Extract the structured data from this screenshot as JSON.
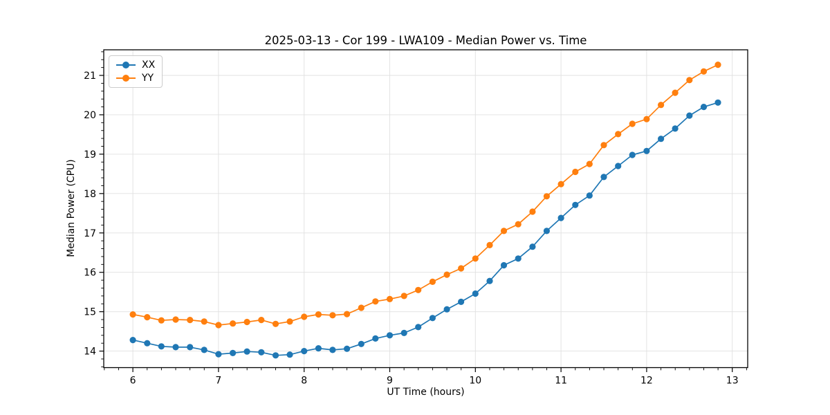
{
  "chart_data": {
    "type": "line",
    "title": "2025-03-13 - Cor 199 - LWA109 - Median Power vs. Time",
    "xlabel": "UT Time (hours)",
    "ylabel": "Median Power (CPU)",
    "xlim": [
      5.66,
      13.18
    ],
    "ylim": [
      13.58,
      21.65
    ],
    "xticks": [
      6,
      7,
      8,
      9,
      10,
      11,
      12,
      13
    ],
    "yticks": [
      14,
      15,
      16,
      17,
      18,
      19,
      20,
      21
    ],
    "x_minor_step": 0.16667,
    "y_minor_step": 0.2,
    "grid": true,
    "grid_color": "#e0e0e0",
    "legend_position": "upper-left",
    "x": [
      6.0,
      6.167,
      6.333,
      6.5,
      6.667,
      6.833,
      7.0,
      7.167,
      7.333,
      7.5,
      7.667,
      7.833,
      8.0,
      8.167,
      8.333,
      8.5,
      8.667,
      8.833,
      9.0,
      9.167,
      9.333,
      9.5,
      9.667,
      9.833,
      10.0,
      10.167,
      10.333,
      10.5,
      10.667,
      10.833,
      11.0,
      11.167,
      11.333,
      11.5,
      11.667,
      11.833,
      12.0,
      12.167,
      12.333,
      12.5,
      12.667,
      12.833
    ],
    "series": [
      {
        "name": "XX",
        "color": "#1f77b4",
        "marker": "circle",
        "values": [
          14.28,
          14.2,
          14.12,
          14.1,
          14.1,
          14.03,
          13.92,
          13.95,
          13.99,
          13.97,
          13.89,
          13.91,
          14.0,
          14.07,
          14.03,
          14.06,
          14.18,
          14.32,
          14.4,
          14.46,
          14.61,
          14.84,
          15.06,
          15.25,
          15.46,
          15.78,
          16.18,
          16.35,
          16.65,
          17.05,
          17.38,
          17.71,
          17.95,
          18.42,
          18.7,
          18.98,
          19.08,
          19.39,
          19.65,
          19.98,
          20.2,
          20.31
        ]
      },
      {
        "name": "YY",
        "color": "#ff7f0e",
        "marker": "circle",
        "values": [
          14.93,
          14.86,
          14.78,
          14.8,
          14.79,
          14.75,
          14.66,
          14.7,
          14.74,
          14.79,
          14.69,
          14.75,
          14.87,
          14.93,
          14.91,
          14.94,
          15.1,
          15.26,
          15.32,
          15.4,
          15.55,
          15.76,
          15.94,
          16.1,
          16.35,
          16.69,
          17.05,
          17.22,
          17.54,
          17.93,
          18.24,
          18.55,
          18.75,
          19.23,
          19.51,
          19.77,
          19.89,
          20.25,
          20.56,
          20.88,
          21.1,
          21.27
        ]
      }
    ]
  }
}
